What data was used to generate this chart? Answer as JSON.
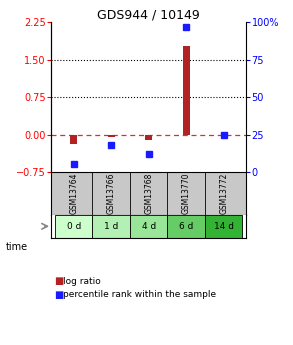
{
  "title": "GDS944 / 10149",
  "samples": [
    "GSM13764",
    "GSM13766",
    "GSM13768",
    "GSM13770",
    "GSM13772"
  ],
  "time_labels": [
    "0 d",
    "1 d",
    "4 d",
    "6 d",
    "14 d"
  ],
  "log_ratio": [
    -0.2,
    -0.05,
    -0.12,
    1.78,
    0.0
  ],
  "percentile_rank": [
    5,
    18,
    12,
    97,
    25
  ],
  "ylim_left": [
    -0.75,
    2.25
  ],
  "ylim_right": [
    0,
    100
  ],
  "yticks_left": [
    -0.75,
    0,
    0.75,
    1.5,
    2.25
  ],
  "yticks_right": [
    0,
    25,
    50,
    75,
    100
  ],
  "hlines": [
    0.75,
    1.5
  ],
  "bar_color_red": "#b22222",
  "bar_color_blue": "#1a1aff",
  "zero_line_color": "#cc3333",
  "bg_color_plot": "#ffffff",
  "bg_color_gsm": "#c8c8c8",
  "time_bg_colors": [
    "#ccffcc",
    "#b3f0b3",
    "#99e699",
    "#66cc66",
    "#33b333"
  ],
  "legend_log_ratio": "log ratio",
  "legend_percentile": "percentile rank within the sample"
}
